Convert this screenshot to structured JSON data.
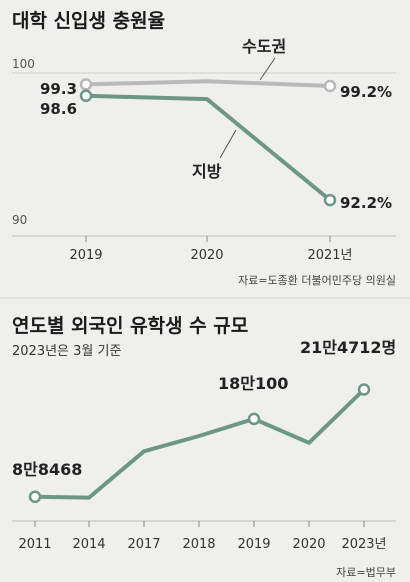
{
  "chart_data": [
    {
      "type": "line",
      "title": "대학 신입생 충원율",
      "categories": [
        "2019",
        "2020",
        "2021년"
      ],
      "yticks": [
        "100",
        "90"
      ],
      "ylim": [
        90,
        100
      ],
      "grid": true,
      "series": [
        {
          "name": "수도권",
          "color": "#b9b9b9",
          "values": [
            99.3,
            99.5,
            99.2
          ],
          "point_labels": [
            "99.3",
            "",
            "99.2%"
          ],
          "markers": [
            true,
            false,
            true
          ]
        },
        {
          "name": "지방",
          "color": "#6d9785",
          "values": [
            98.6,
            98.4,
            92.2
          ],
          "point_labels": [
            "98.6",
            "",
            "92.2%"
          ],
          "markers": [
            true,
            false,
            true
          ]
        }
      ],
      "source": "자료=도종환 더불어민주당 의원실"
    },
    {
      "type": "line",
      "title": "연도별 외국인 유학생 수 규모",
      "subtitle": "2023년은 3월 기준",
      "categories": [
        "2011",
        "2014",
        "2017",
        "2018",
        "2019",
        "2020",
        "2023년"
      ],
      "ylim": [
        60000,
        240000
      ],
      "series": [
        {
          "name": "",
          "color": "#6d9785",
          "values": [
            88468,
            87500,
            142000,
            160000,
            180100,
            152000,
            214712
          ],
          "point_labels": [
            "8만8468",
            "",
            "",
            "",
            "18만100",
            "",
            "21만4712명"
          ],
          "markers": [
            true,
            false,
            false,
            false,
            true,
            false,
            true
          ]
        }
      ],
      "source": "자료=법무부"
    }
  ]
}
